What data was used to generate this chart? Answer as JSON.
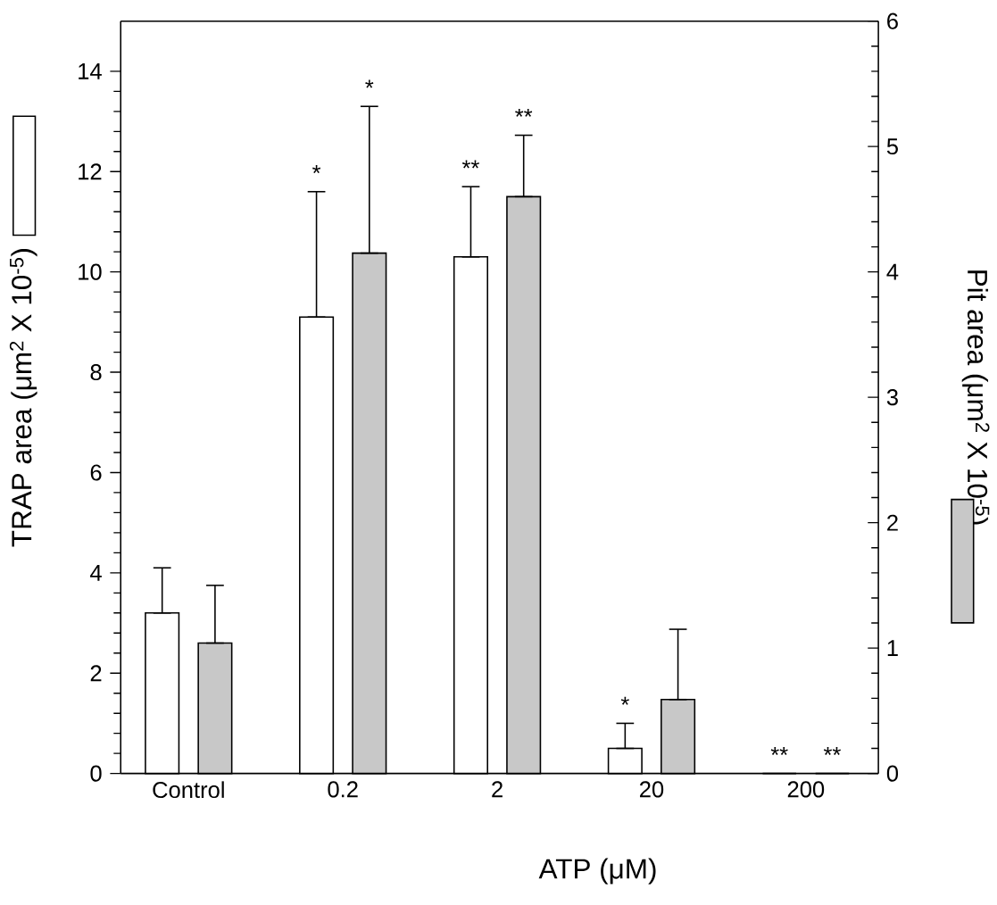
{
  "chart_data": {
    "type": "bar",
    "xlabel": "ATP  (μM)",
    "ylabel": "TRAP area (μm$^{2}$ X 10$^{-5}$)",
    "y2label": "Pit area (μm$^{2}$ X 10$^{-5}$)",
    "categories": [
      "Control",
      "0.2",
      "2",
      "20",
      "200"
    ],
    "series": [
      {
        "color": "#ffffff",
        "values": [
          3.2,
          9.1,
          10.3,
          0.5,
          0
        ],
        "errors": [
          [
            3.2,
            4.1
          ],
          [
            9.1,
            11.6
          ],
          [
            10.3,
            11.7
          ],
          [
            0.5,
            1.0
          ],
          null
        ]
      },
      {
        "color": "#c8c8c8",
        "axis": "y2",
        "values": [
          1.04,
          4.15,
          4.6,
          0.59,
          0
        ],
        "errors": [
          [
            1.04,
            1.5
          ],
          [
            4.15,
            5.32
          ],
          [
            4.6,
            5.09
          ],
          [
            0.59,
            1.15
          ],
          null
        ]
      }
    ],
    "annotations": [
      "*",
      "*",
      "**",
      "**",
      "*",
      "**",
      "**"
    ],
    "ylim": [
      0,
      15
    ],
    "yticks": [
      0,
      2,
      4,
      6,
      8,
      10,
      12,
      14
    ],
    "y2lim": [
      0,
      6
    ],
    "y2ticks": [
      0,
      1,
      2,
      3,
      4,
      5,
      6
    ],
    "grid": false
  }
}
